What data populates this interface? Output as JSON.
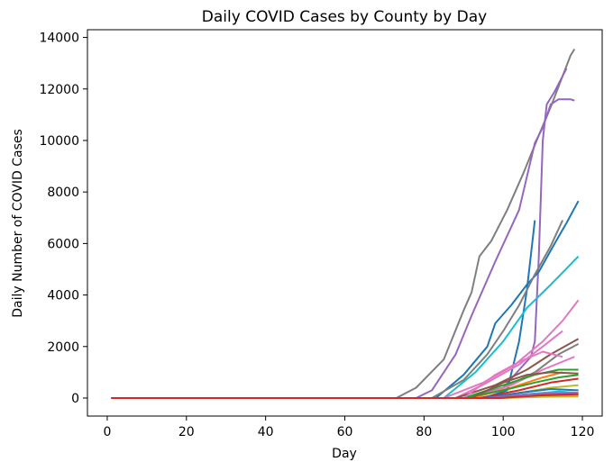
{
  "chart_data": {
    "type": "line",
    "title": "Daily COVID Cases by County by Day",
    "xlabel": "Day",
    "ylabel": "Daily Number of COVID Cases",
    "xlim": [
      -5,
      125
    ],
    "ylim": [
      -700,
      14300
    ],
    "xticks": [
      0,
      20,
      40,
      60,
      80,
      100,
      120
    ],
    "yticks": [
      0,
      2000,
      4000,
      6000,
      8000,
      10000,
      12000,
      14000
    ],
    "grid": false,
    "legend": "none",
    "series": [
      {
        "color": "#7f7f7f",
        "points": [
          [
            1,
            0
          ],
          [
            73,
            0
          ],
          [
            78,
            400
          ],
          [
            85,
            1500
          ],
          [
            90,
            3400
          ],
          [
            92,
            4100
          ],
          [
            94,
            5500
          ],
          [
            97,
            6100
          ],
          [
            101,
            7300
          ],
          [
            105,
            8700
          ],
          [
            109,
            10200
          ],
          [
            112,
            11300
          ],
          [
            115,
            12500
          ],
          [
            117,
            13300
          ],
          [
            118,
            13550
          ]
        ]
      },
      {
        "color": "#9467bd",
        "points": [
          [
            1,
            0
          ],
          [
            78,
            0
          ],
          [
            82,
            300
          ],
          [
            88,
            1700
          ],
          [
            92,
            3200
          ],
          [
            98,
            5300
          ],
          [
            104,
            7300
          ],
          [
            108,
            9900
          ],
          [
            110,
            10500
          ],
          [
            112,
            11400
          ],
          [
            114,
            11600
          ],
          [
            117,
            11600
          ],
          [
            118,
            11550
          ]
        ]
      },
      {
        "color": "#9467bd",
        "points": [
          [
            1,
            0
          ],
          [
            90,
            0
          ],
          [
            100,
            400
          ],
          [
            107,
            1600
          ],
          [
            108,
            2200
          ],
          [
            109,
            5500
          ],
          [
            110,
            10000
          ],
          [
            111,
            11400
          ],
          [
            113,
            11900
          ],
          [
            116,
            12800
          ]
        ]
      },
      {
        "color": "#1f77b4",
        "points": [
          [
            1,
            0
          ],
          [
            83,
            0
          ],
          [
            90,
            900
          ],
          [
            96,
            2000
          ],
          [
            98,
            2900
          ],
          [
            102,
            3600
          ],
          [
            106,
            4400
          ],
          [
            109,
            4900
          ],
          [
            113,
            6000
          ],
          [
            116,
            6800
          ],
          [
            119,
            7650
          ]
        ]
      },
      {
        "color": "#1f77b4",
        "points": [
          [
            1,
            0
          ],
          [
            95,
            0
          ],
          [
            101,
            300
          ],
          [
            104,
            2200
          ],
          [
            106,
            4200
          ],
          [
            108,
            6900
          ]
        ]
      },
      {
        "color": "#7f7f7f",
        "points": [
          [
            1,
            0
          ],
          [
            82,
            0
          ],
          [
            90,
            700
          ],
          [
            96,
            1700
          ],
          [
            100,
            2600
          ],
          [
            104,
            3600
          ],
          [
            108,
            4800
          ],
          [
            112,
            5900
          ],
          [
            115,
            6900
          ]
        ]
      },
      {
        "color": "#17becf",
        "points": [
          [
            1,
            0
          ],
          [
            85,
            0
          ],
          [
            93,
            1000
          ],
          [
            100,
            2200
          ],
          [
            106,
            3500
          ],
          [
            112,
            4400
          ],
          [
            119,
            5500
          ]
        ]
      },
      {
        "color": "#e377c2",
        "points": [
          [
            1,
            0
          ],
          [
            85,
            0
          ],
          [
            95,
            600
          ],
          [
            103,
            1300
          ],
          [
            110,
            2200
          ],
          [
            115,
            3000
          ],
          [
            119,
            3800
          ]
        ]
      },
      {
        "color": "#e377c2",
        "points": [
          [
            1,
            0
          ],
          [
            88,
            0
          ],
          [
            96,
            600
          ],
          [
            104,
            1300
          ],
          [
            110,
            2000
          ],
          [
            115,
            2600
          ]
        ]
      },
      {
        "color": "#8c564b",
        "points": [
          [
            1,
            0
          ],
          [
            88,
            0
          ],
          [
            98,
            500
          ],
          [
            106,
            1100
          ],
          [
            112,
            1700
          ],
          [
            119,
            2300
          ]
        ]
      },
      {
        "color": "#7f7f7f",
        "points": [
          [
            1,
            0
          ],
          [
            90,
            0
          ],
          [
            100,
            400
          ],
          [
            108,
            1000
          ],
          [
            114,
            1700
          ],
          [
            119,
            2100
          ]
        ]
      },
      {
        "color": "#e377c2",
        "points": [
          [
            1,
            0
          ],
          [
            92,
            0
          ],
          [
            102,
            500
          ],
          [
            110,
            1100
          ],
          [
            118,
            1600
          ]
        ]
      },
      {
        "color": "#2ca02c",
        "points": [
          [
            1,
            0
          ],
          [
            90,
            0
          ],
          [
            100,
            500
          ],
          [
            108,
            900
          ],
          [
            114,
            1100
          ],
          [
            119,
            1100
          ]
        ]
      },
      {
        "color": "#ff7f0e",
        "points": [
          [
            1,
            0
          ],
          [
            92,
            0
          ],
          [
            102,
            400
          ],
          [
            110,
            800
          ],
          [
            115,
            1000
          ]
        ]
      },
      {
        "color": "#d62728",
        "points": [
          [
            1,
            0
          ],
          [
            94,
            0
          ],
          [
            104,
            300
          ],
          [
            112,
            600
          ],
          [
            119,
            750
          ]
        ]
      },
      {
        "color": "#bcbd22",
        "points": [
          [
            1,
            0
          ],
          [
            96,
            0
          ],
          [
            106,
            250
          ],
          [
            112,
            400
          ],
          [
            119,
            500
          ]
        ]
      },
      {
        "color": "#1f77b4",
        "points": [
          [
            1,
            0
          ],
          [
            95,
            0
          ],
          [
            104,
            200
          ],
          [
            112,
            350
          ],
          [
            119,
            300
          ]
        ]
      },
      {
        "color": "#17becf",
        "points": [
          [
            1,
            0
          ],
          [
            96,
            0
          ],
          [
            106,
            150
          ],
          [
            114,
            250
          ],
          [
            119,
            200
          ]
        ]
      },
      {
        "color": "#ff7f0e",
        "points": [
          [
            1,
            0
          ],
          [
            98,
            0
          ],
          [
            108,
            80
          ],
          [
            119,
            100
          ]
        ]
      },
      {
        "color": "#2ca02c",
        "points": [
          [
            1,
            0
          ],
          [
            90,
            0
          ],
          [
            100,
            300
          ],
          [
            108,
            600
          ],
          [
            114,
            800
          ],
          [
            119,
            900
          ]
        ]
      },
      {
        "color": "#9467bd",
        "points": [
          [
            1,
            0
          ],
          [
            96,
            0
          ],
          [
            106,
            150
          ],
          [
            119,
            200
          ]
        ]
      },
      {
        "color": "#8c564b",
        "points": [
          [
            1,
            0
          ],
          [
            92,
            0
          ],
          [
            100,
            600
          ],
          [
            106,
            900
          ],
          [
            112,
            1000
          ],
          [
            119,
            950
          ]
        ]
      },
      {
        "color": "#e377c2",
        "points": [
          [
            1,
            0
          ],
          [
            90,
            0
          ],
          [
            98,
            900
          ],
          [
            104,
            1400
          ],
          [
            110,
            1800
          ],
          [
            115,
            1600
          ]
        ]
      },
      {
        "color": "#bcbd22",
        "points": [
          [
            1,
            0
          ],
          [
            100,
            0
          ],
          [
            110,
            50
          ],
          [
            119,
            60
          ]
        ]
      },
      {
        "color": "#d62728",
        "points": [
          [
            1,
            0
          ],
          [
            99,
            0
          ],
          [
            109,
            100
          ],
          [
            119,
            150
          ]
        ]
      }
    ]
  }
}
